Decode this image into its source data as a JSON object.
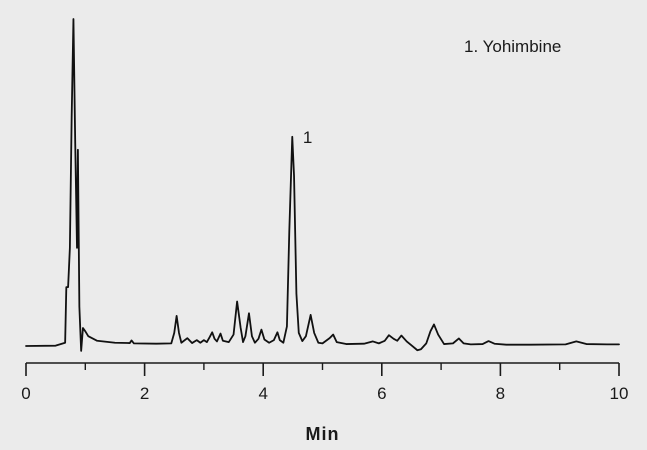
{
  "chart_data": {
    "type": "line",
    "title": "",
    "xlabel": "Min",
    "ylabel": "",
    "xlim": [
      0,
      10
    ],
    "ylim": [
      0,
      100
    ],
    "xticks": [
      0,
      2,
      4,
      6,
      8,
      10
    ],
    "xtick_labels": [
      "0",
      "2",
      "4",
      "6",
      "8",
      "10"
    ],
    "grid": false,
    "legend": {
      "placement": "top-right",
      "entries": [
        "1. Yohimbine"
      ]
    },
    "annotations": [
      {
        "label": "1",
        "x": 4.5,
        "y": 64.5
      }
    ],
    "series": [
      {
        "color": "#111111",
        "points": [
          [
            0.0,
            0.0
          ],
          [
            0.5,
            0.1
          ],
          [
            0.66,
            1.0
          ],
          [
            0.68,
            18.0
          ],
          [
            0.71,
            18.0
          ],
          [
            0.74,
            30.0
          ],
          [
            0.77,
            70.0
          ],
          [
            0.8,
            100.0
          ],
          [
            0.83,
            62.0
          ],
          [
            0.86,
            30.0
          ],
          [
            0.875,
            60.0
          ],
          [
            0.9,
            12.0
          ],
          [
            0.93,
            -1.5
          ],
          [
            0.96,
            5.5
          ],
          [
            1.0,
            4.5
          ],
          [
            1.05,
            3.0
          ],
          [
            1.2,
            1.6
          ],
          [
            1.5,
            1.0
          ],
          [
            1.75,
            0.9
          ],
          [
            1.78,
            1.7
          ],
          [
            1.82,
            0.8
          ],
          [
            2.2,
            0.7
          ],
          [
            2.45,
            0.8
          ],
          [
            2.5,
            4.0
          ],
          [
            2.54,
            9.2
          ],
          [
            2.58,
            4.0
          ],
          [
            2.62,
            1.0
          ],
          [
            2.72,
            2.4
          ],
          [
            2.8,
            0.9
          ],
          [
            2.88,
            1.8
          ],
          [
            2.94,
            1.0
          ],
          [
            3.0,
            1.8
          ],
          [
            3.05,
            1.2
          ],
          [
            3.1,
            2.8
          ],
          [
            3.14,
            4.2
          ],
          [
            3.18,
            2.2
          ],
          [
            3.22,
            1.4
          ],
          [
            3.28,
            3.8
          ],
          [
            3.32,
            1.6
          ],
          [
            3.42,
            1.2
          ],
          [
            3.5,
            3.5
          ],
          [
            3.56,
            13.6
          ],
          [
            3.62,
            5.5
          ],
          [
            3.66,
            1.2
          ],
          [
            3.7,
            3.0
          ],
          [
            3.76,
            10.0
          ],
          [
            3.81,
            3.0
          ],
          [
            3.86,
            1.0
          ],
          [
            3.92,
            2.2
          ],
          [
            3.97,
            5.0
          ],
          [
            4.02,
            2.0
          ],
          [
            4.1,
            1.0
          ],
          [
            4.18,
            1.8
          ],
          [
            4.24,
            4.2
          ],
          [
            4.28,
            1.8
          ],
          [
            4.34,
            1.0
          ],
          [
            4.4,
            6.0
          ],
          [
            4.44,
            35.0
          ],
          [
            4.49,
            64.0
          ],
          [
            4.52,
            52.0
          ],
          [
            4.56,
            16.0
          ],
          [
            4.6,
            4.0
          ],
          [
            4.66,
            1.5
          ],
          [
            4.72,
            3.0
          ],
          [
            4.8,
            9.5
          ],
          [
            4.86,
            4.0
          ],
          [
            4.93,
            1.0
          ],
          [
            5.0,
            0.8
          ],
          [
            5.12,
            2.4
          ],
          [
            5.18,
            3.5
          ],
          [
            5.24,
            1.2
          ],
          [
            5.4,
            0.6
          ],
          [
            5.7,
            0.7
          ],
          [
            5.85,
            1.4
          ],
          [
            5.95,
            0.8
          ],
          [
            6.05,
            1.6
          ],
          [
            6.12,
            3.3
          ],
          [
            6.2,
            2.2
          ],
          [
            6.26,
            1.6
          ],
          [
            6.33,
            3.2
          ],
          [
            6.42,
            1.4
          ],
          [
            6.5,
            0.2
          ],
          [
            6.6,
            -1.3
          ],
          [
            6.66,
            -1.0
          ],
          [
            6.75,
            0.8
          ],
          [
            6.82,
            4.5
          ],
          [
            6.88,
            6.6
          ],
          [
            6.95,
            3.5
          ],
          [
            7.05,
            0.6
          ],
          [
            7.2,
            0.8
          ],
          [
            7.3,
            2.3
          ],
          [
            7.38,
            0.8
          ],
          [
            7.5,
            0.5
          ],
          [
            7.7,
            0.6
          ],
          [
            7.8,
            1.5
          ],
          [
            7.9,
            0.7
          ],
          [
            8.1,
            0.4
          ],
          [
            8.5,
            0.4
          ],
          [
            9.1,
            0.5
          ],
          [
            9.28,
            1.4
          ],
          [
            9.45,
            0.6
          ],
          [
            9.8,
            0.5
          ],
          [
            10.0,
            0.5
          ]
        ]
      }
    ]
  }
}
